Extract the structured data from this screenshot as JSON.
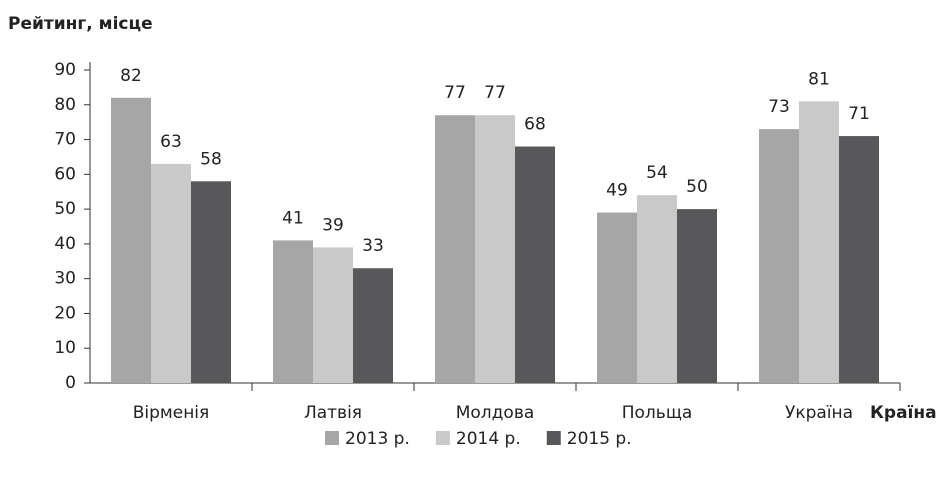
{
  "chart_data": {
    "type": "bar",
    "y_axis_label": "Рейтинг, місце",
    "x_axis_label": "Країна",
    "categories": [
      "Вірменія",
      "Латвія",
      "Молдова",
      "Польща",
      "Україна"
    ],
    "series": [
      {
        "name": "2013 р.",
        "color": "#a6a6a6",
        "values": [
          82,
          41,
          77,
          49,
          73
        ]
      },
      {
        "name": "2014 р.",
        "color": "#c9c9c9",
        "values": [
          63,
          39,
          77,
          54,
          81
        ]
      },
      {
        "name": "2015 р.",
        "color": "#58585a",
        "values": [
          58,
          33,
          68,
          50,
          71
        ]
      }
    ],
    "ylim": [
      0,
      90
    ],
    "yticks": [
      0,
      10,
      20,
      30,
      40,
      50,
      60,
      70,
      80,
      90
    ]
  }
}
